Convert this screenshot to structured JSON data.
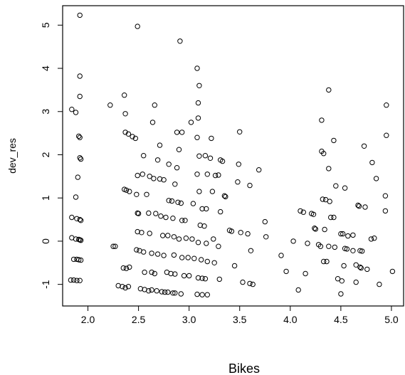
{
  "chart_data": {
    "type": "scatter",
    "title": "",
    "xlabel": "Bikes",
    "ylabel": "dev_res",
    "xlim": [
      1.75,
      5.12
    ],
    "ylim": [
      -1.5,
      5.45
    ],
    "xticks": [
      "2.0",
      "2.5",
      "3.0",
      "3.5",
      "4.0",
      "4.5",
      "5.0"
    ],
    "yticks": [
      "-1",
      "0",
      "1",
      "2",
      "3",
      "4",
      "5"
    ],
    "grid": false,
    "legend": "none",
    "marker": "open-circle",
    "color": "#000000",
    "series": [
      {
        "points": [
          [
            1.92,
            5.23
          ],
          [
            1.92,
            3.82
          ],
          [
            1.92,
            3.35
          ],
          [
            1.84,
            3.05
          ],
          [
            1.88,
            2.98
          ],
          [
            1.91,
            2.43
          ],
          [
            1.92,
            2.4
          ],
          [
            1.92,
            1.93
          ],
          [
            1.93,
            1.9
          ],
          [
            1.9,
            1.48
          ],
          [
            1.88,
            1.02
          ],
          [
            1.84,
            0.55
          ],
          [
            1.89,
            0.52
          ],
          [
            1.92,
            0.5
          ],
          [
            1.93,
            0.48
          ],
          [
            1.84,
            0.08
          ],
          [
            1.88,
            0.05
          ],
          [
            1.91,
            0.04
          ],
          [
            1.92,
            0.03
          ],
          [
            1.93,
            0.02
          ],
          [
            1.86,
            -0.42
          ],
          [
            1.89,
            -0.42
          ],
          [
            1.91,
            -0.43
          ],
          [
            1.93,
            -0.44
          ],
          [
            1.83,
            -0.9
          ],
          [
            1.86,
            -0.9
          ],
          [
            1.89,
            -0.91
          ],
          [
            1.92,
            -0.91
          ],
          [
            2.22,
            3.15
          ],
          [
            2.25,
            -0.12
          ],
          [
            2.27,
            -0.12
          ],
          [
            2.36,
            3.38
          ],
          [
            2.37,
            2.95
          ],
          [
            2.37,
            2.52
          ],
          [
            2.4,
            2.48
          ],
          [
            2.44,
            2.42
          ],
          [
            2.47,
            2.38
          ],
          [
            2.36,
            1.2
          ],
          [
            2.38,
            1.18
          ],
          [
            2.41,
            1.15
          ],
          [
            2.35,
            -0.62
          ],
          [
            2.38,
            -0.63
          ],
          [
            2.41,
            -0.6
          ],
          [
            2.3,
            -1.03
          ],
          [
            2.34,
            -1.05
          ],
          [
            2.37,
            -1.08
          ],
          [
            2.4,
            -1.05
          ],
          [
            2.49,
            4.97
          ],
          [
            2.49,
            1.52
          ],
          [
            2.48,
            1.08
          ],
          [
            2.49,
            0.65
          ],
          [
            2.5,
            0.64
          ],
          [
            2.49,
            0.22
          ],
          [
            2.48,
            -0.2
          ],
          [
            2.51,
            -0.22
          ],
          [
            2.54,
            1.55
          ],
          [
            2.55,
            1.98
          ],
          [
            2.53,
            0.2
          ],
          [
            2.55,
            -0.25
          ],
          [
            2.56,
            -0.72
          ],
          [
            2.58,
            1.08
          ],
          [
            2.6,
            0.65
          ],
          [
            2.61,
            0.18
          ],
          [
            2.63,
            -0.28
          ],
          [
            2.63,
            -0.72
          ],
          [
            2.66,
            3.15
          ],
          [
            2.64,
            2.75
          ],
          [
            2.61,
            1.5
          ],
          [
            2.65,
            1.45
          ],
          [
            2.67,
            0.64
          ],
          [
            2.69,
            -0.3
          ],
          [
            2.66,
            -0.75
          ],
          [
            2.68,
            -1.15
          ],
          [
            2.52,
            -1.1
          ],
          [
            2.56,
            -1.12
          ],
          [
            2.6,
            -1.15
          ],
          [
            2.63,
            -1.13
          ],
          [
            2.71,
            2.22
          ],
          [
            2.69,
            1.88
          ],
          [
            2.71,
            1.44
          ],
          [
            2.72,
            0.58
          ],
          [
            2.74,
            0.13
          ],
          [
            2.75,
            1.42
          ],
          [
            2.77,
            0.55
          ],
          [
            2.79,
            0.13
          ],
          [
            2.75,
            -0.33
          ],
          [
            2.78,
            -0.72
          ],
          [
            2.73,
            -1.17
          ],
          [
            2.76,
            -1.18
          ],
          [
            2.79,
            -1.18
          ],
          [
            2.83,
            0.93
          ],
          [
            2.8,
            1.78
          ],
          [
            2.8,
            0.94
          ],
          [
            2.84,
            0.53
          ],
          [
            2.85,
            0.1
          ],
          [
            2.85,
            -0.32
          ],
          [
            2.82,
            -0.75
          ],
          [
            2.86,
            -0.76
          ],
          [
            2.84,
            -1.2
          ],
          [
            2.86,
            -1.2
          ],
          [
            2.88,
            2.52
          ],
          [
            2.93,
            2.52
          ],
          [
            2.9,
            2.12
          ],
          [
            2.88,
            1.7
          ],
          [
            2.86,
            1.32
          ],
          [
            2.89,
            0.9
          ],
          [
            2.92,
            0.88
          ],
          [
            2.93,
            0.48
          ],
          [
            2.9,
            0.05
          ],
          [
            2.93,
            -0.38
          ],
          [
            2.95,
            -0.8
          ],
          [
            2.92,
            -1.22
          ],
          [
            2.91,
            4.63
          ],
          [
            2.96,
            0.48
          ],
          [
            2.97,
            0.07
          ],
          [
            2.99,
            -0.38
          ],
          [
            3.0,
            -0.8
          ],
          [
            3.02,
            2.75
          ],
          [
            3.04,
            0.87
          ],
          [
            3.03,
            0.05
          ],
          [
            3.05,
            -0.4
          ],
          [
            3.08,
            4.0
          ],
          [
            3.1,
            3.6
          ],
          [
            3.09,
            3.2
          ],
          [
            3.09,
            2.85
          ],
          [
            3.08,
            2.4
          ],
          [
            3.1,
            1.97
          ],
          [
            3.08,
            1.55
          ],
          [
            3.1,
            1.15
          ],
          [
            3.13,
            0.75
          ],
          [
            3.11,
            0.37
          ],
          [
            3.09,
            -0.03
          ],
          [
            3.12,
            -0.43
          ],
          [
            3.09,
            -0.85
          ],
          [
            3.13,
            -0.86
          ],
          [
            3.08,
            -1.23
          ],
          [
            3.13,
            -1.24
          ],
          [
            3.18,
            -1.24
          ],
          [
            3.16,
            1.98
          ],
          [
            3.18,
            1.55
          ],
          [
            3.17,
            0.75
          ],
          [
            3.15,
            0.35
          ],
          [
            3.17,
            -0.05
          ],
          [
            3.18,
            -0.47
          ],
          [
            3.16,
            -0.87
          ],
          [
            3.22,
            2.38
          ],
          [
            3.21,
            1.92
          ],
          [
            3.23,
            1.15
          ],
          [
            3.24,
            0.05
          ],
          [
            3.25,
            -0.5
          ],
          [
            3.3,
            -0.88
          ],
          [
            3.29,
            -0.12
          ],
          [
            3.26,
            1.52
          ],
          [
            3.29,
            1.53
          ],
          [
            3.31,
            0.68
          ],
          [
            3.31,
            1.88
          ],
          [
            3.33,
            1.85
          ],
          [
            3.35,
            1.05
          ],
          [
            3.36,
            1.03
          ],
          [
            3.4,
            0.25
          ],
          [
            3.42,
            0.23
          ],
          [
            3.45,
            -0.57
          ],
          [
            3.5,
            2.53
          ],
          [
            3.49,
            1.78
          ],
          [
            3.48,
            1.37
          ],
          [
            3.51,
            0.2
          ],
          [
            3.53,
            -0.95
          ],
          [
            3.58,
            0.17
          ],
          [
            3.6,
            1.29
          ],
          [
            3.61,
            -0.22
          ],
          [
            3.6,
            -0.98
          ],
          [
            3.63,
            -1.0
          ],
          [
            3.69,
            1.65
          ],
          [
            3.75,
            0.45
          ],
          [
            3.76,
            0.1
          ],
          [
            3.91,
            -0.33
          ],
          [
            3.96,
            -0.7
          ],
          [
            4.03,
            0.0
          ],
          [
            4.08,
            -1.13
          ],
          [
            4.1,
            0.7
          ],
          [
            4.13,
            0.67
          ],
          [
            4.15,
            -0.75
          ],
          [
            4.17,
            -0.05
          ],
          [
            4.21,
            0.64
          ],
          [
            4.23,
            0.62
          ],
          [
            4.24,
            0.3
          ],
          [
            4.25,
            0.28
          ],
          [
            4.28,
            -0.08
          ],
          [
            4.3,
            -0.12
          ],
          [
            4.31,
            2.08
          ],
          [
            4.33,
            2.03
          ],
          [
            4.31,
            2.8
          ],
          [
            4.32,
            0.97
          ],
          [
            4.35,
            0.96
          ],
          [
            4.34,
            0.27
          ],
          [
            4.33,
            -0.47
          ],
          [
            4.36,
            -0.47
          ],
          [
            4.38,
            -0.12
          ],
          [
            4.38,
            3.5
          ],
          [
            4.38,
            1.68
          ],
          [
            4.39,
            0.92
          ],
          [
            4.4,
            0.55
          ],
          [
            4.43,
            2.33
          ],
          [
            4.43,
            0.55
          ],
          [
            4.44,
            -0.14
          ],
          [
            4.45,
            1.28
          ],
          [
            4.47,
            -0.87
          ],
          [
            4.5,
            -1.22
          ],
          [
            4.5,
            0.17
          ],
          [
            4.52,
            0.17
          ],
          [
            4.54,
            1.23
          ],
          [
            4.53,
            -0.57
          ],
          [
            4.51,
            -0.92
          ],
          [
            4.54,
            -0.17
          ],
          [
            4.56,
            -0.18
          ],
          [
            4.57,
            0.12
          ],
          [
            4.62,
            0.14
          ],
          [
            4.62,
            -0.22
          ],
          [
            4.65,
            -0.55
          ],
          [
            4.69,
            -0.6
          ],
          [
            4.7,
            -0.62
          ],
          [
            4.65,
            -0.95
          ],
          [
            4.67,
            0.83
          ],
          [
            4.68,
            0.81
          ],
          [
            4.69,
            -0.22
          ],
          [
            4.71,
            -0.23
          ],
          [
            4.73,
            2.2
          ],
          [
            4.74,
            0.79
          ],
          [
            4.76,
            -0.65
          ],
          [
            4.8,
            0.05
          ],
          [
            4.83,
            0.07
          ],
          [
            4.81,
            1.82
          ],
          [
            4.85,
            1.45
          ],
          [
            4.88,
            -1.0
          ],
          [
            4.95,
            3.15
          ],
          [
            4.95,
            2.45
          ],
          [
            4.94,
            1.05
          ],
          [
            4.94,
            0.7
          ],
          [
            5.01,
            -0.7
          ]
        ]
      }
    ]
  }
}
